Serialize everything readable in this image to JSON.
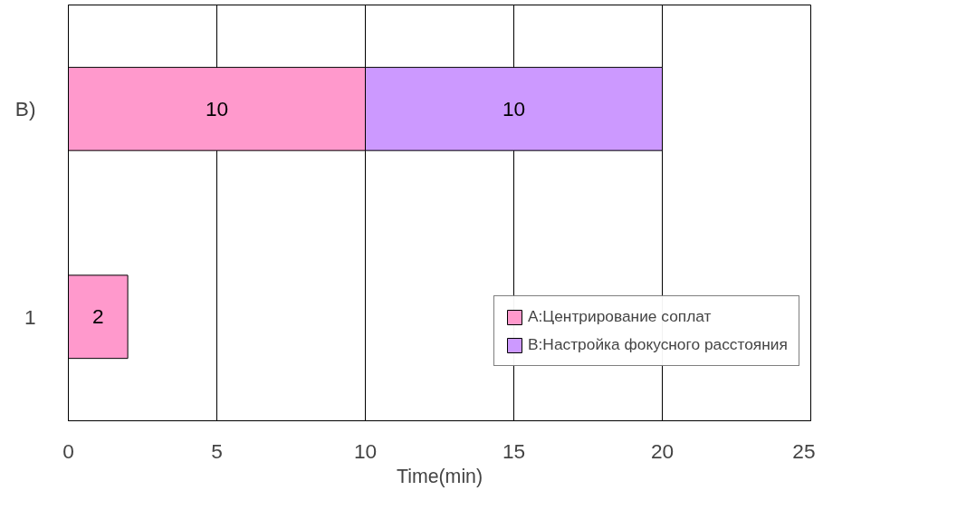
{
  "chart_data": {
    "type": "bar",
    "orientation": "horizontal",
    "stacked": true,
    "xlabel": "Time(min)",
    "categories": [
      "B)",
      "1"
    ],
    "series": [
      {
        "name": "A:Центрирование соплат",
        "color": "#ff99cc",
        "values": [
          10,
          2
        ]
      },
      {
        "name": "B:Настройка фокусного расстояния",
        "color": "#cc99ff",
        "values": [
          10,
          null
        ]
      }
    ],
    "xlim": [
      0,
      25
    ],
    "xticks": [
      0,
      5,
      10,
      15,
      20,
      25
    ],
    "grid": "x",
    "legend": "right",
    "data_labels": true
  }
}
